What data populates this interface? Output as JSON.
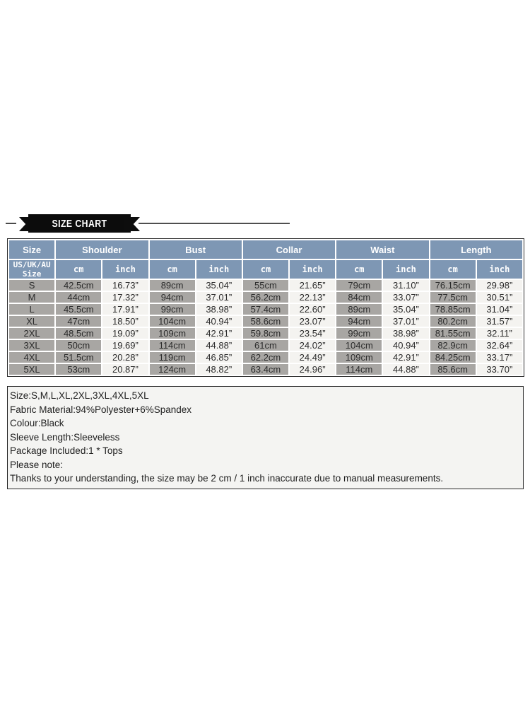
{
  "banner": {
    "title": "SIZE CHART"
  },
  "table": {
    "groups": [
      "Size",
      "Shoulder",
      "Bust",
      "Collar",
      "Waist",
      "Length"
    ],
    "size_subheader_line1": "US/UK/AU",
    "size_subheader_line2": "Size",
    "unit_cm": "cm",
    "unit_inch": "inch",
    "rows": [
      [
        "S",
        "42.5cm",
        "16.73”",
        "89cm",
        "35.04”",
        "55cm",
        "21.65”",
        "79cm",
        "31.10”",
        "76.15cm",
        "29.98”"
      ],
      [
        "M",
        "44cm",
        "17.32”",
        "94cm",
        "37.01”",
        "56.2cm",
        "22.13”",
        "84cm",
        "33.07”",
        "77.5cm",
        "30.51”"
      ],
      [
        "L",
        "45.5cm",
        "17.91”",
        "99cm",
        "38.98”",
        "57.4cm",
        "22.60”",
        "89cm",
        "35.04”",
        "78.85cm",
        "31.04”"
      ],
      [
        "XL",
        "47cm",
        "18.50”",
        "104cm",
        "40.94”",
        "58.6cm",
        "23.07”",
        "94cm",
        "37.01”",
        "80.2cm",
        "31.57”"
      ],
      [
        "2XL",
        "48.5cm",
        "19.09”",
        "109cm",
        "42.91”",
        "59.8cm",
        "23.54”",
        "99cm",
        "38.98”",
        "81.55cm",
        "32.11”"
      ],
      [
        "3XL",
        "50cm",
        "19.69”",
        "114cm",
        "44.88”",
        "61cm",
        "24.02”",
        "104cm",
        "40.94”",
        "82.9cm",
        "32.64”"
      ],
      [
        "4XL",
        "51.5cm",
        "20.28”",
        "119cm",
        "46.85”",
        "62.2cm",
        "24.49”",
        "109cm",
        "42.91”",
        "84.25cm",
        "33.17”"
      ],
      [
        "5XL",
        "53cm",
        "20.87”",
        "124cm",
        "48.82”",
        "63.4cm",
        "24.96”",
        "114cm",
        "44.88”",
        "85.6cm",
        "33.70”"
      ]
    ]
  },
  "notes": {
    "lines": [
      "Size:S,M,L,XL,2XL,3XL,4XL,5XL",
      "Fabric Material:94%Polyester+6%Spandex",
      "Colour:Black",
      "Sleeve Length:Sleeveless",
      "Package Included:1 * Tops",
      "Please note:",
      "Thanks to your understanding, the size may be 2 cm / 1 inch inaccurate due to manual measurements."
    ]
  },
  "colors": {
    "header_blue": "#7e97b4",
    "cell_gray": "#a8a6a3",
    "cell_light": "#f4f3f0",
    "ribbon_black": "#0c0c0c",
    "notes_bg": "#f4f4f2"
  }
}
